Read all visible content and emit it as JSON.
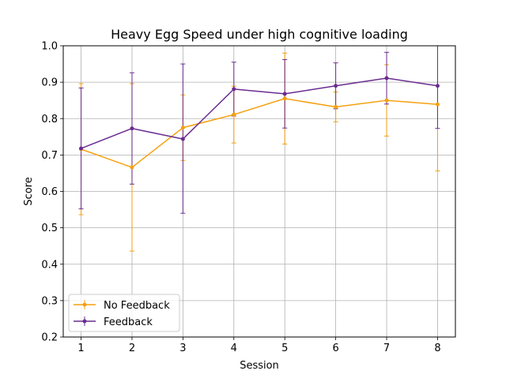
{
  "chart_data": {
    "type": "line",
    "title": "Heavy Egg Speed under high cognitive loading",
    "xlabel": "Session",
    "ylabel": "Score",
    "x": [
      1,
      2,
      3,
      4,
      5,
      6,
      7,
      8
    ],
    "xticks": [
      "1",
      "2",
      "3",
      "4",
      "5",
      "6",
      "7",
      "8"
    ],
    "xlim": [
      0.65,
      8.35
    ],
    "ylim": [
      0.2,
      1.0
    ],
    "yticks": [
      "0.2",
      "0.3",
      "0.4",
      "0.5",
      "0.6",
      "0.7",
      "0.8",
      "0.9",
      "1.0"
    ],
    "grid": true,
    "legend_position": "lower-left",
    "series": [
      {
        "name": "No Feedback",
        "color": "#f5a00f",
        "values": [
          0.716,
          0.666,
          0.775,
          0.811,
          0.855,
          0.832,
          0.85,
          0.839
        ],
        "err_low": [
          0.536,
          0.436,
          0.685,
          0.733,
          0.73,
          0.791,
          0.752,
          0.656
        ],
        "err_high": [
          0.896,
          0.896,
          0.865,
          0.889,
          0.98,
          0.873,
          0.948,
          1.0
        ]
      },
      {
        "name": "Feedback",
        "color": "#6a2c91",
        "values": [
          0.718,
          0.773,
          0.744,
          0.881,
          0.868,
          0.89,
          0.911,
          0.89
        ],
        "err_low": [
          0.552,
          0.62,
          0.54,
          0.807,
          0.774,
          0.827,
          0.84,
          0.773
        ],
        "err_high": [
          0.884,
          0.926,
          0.95,
          0.955,
          0.962,
          0.953,
          0.982,
          1.0
        ]
      }
    ]
  }
}
